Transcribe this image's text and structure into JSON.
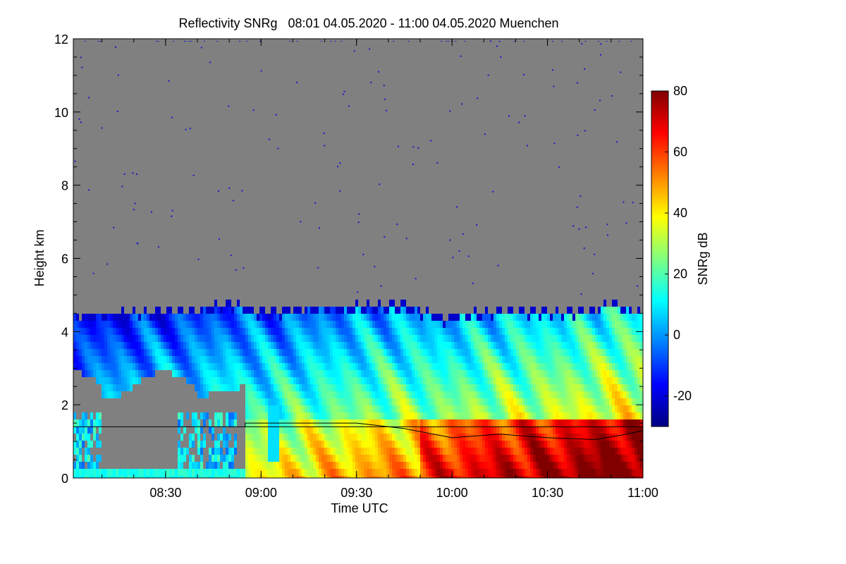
{
  "chart_data": {
    "type": "heatmap",
    "title": "Reflectivity SNRg   08:01 04.05.2020 - 11:00 04.05.2020 Muenchen",
    "xlabel": "Time UTC",
    "ylabel": "Height km",
    "colorbar_label": "SNRg dB",
    "x_range": [
      "08:01",
      "11:00"
    ],
    "y_range": [
      0,
      12
    ],
    "x_ticks": [
      "08:30",
      "09:00",
      "09:30",
      "10:00",
      "10:30",
      "11:00"
    ],
    "y_ticks": [
      0,
      2,
      4,
      6,
      8,
      10,
      12
    ],
    "colorbar_range": [
      -30,
      80
    ],
    "colorbar_ticks": [
      -20,
      0,
      20,
      40,
      60,
      80
    ],
    "no_data_color": "#808080",
    "colormap": [
      "#000080",
      "#0000ff",
      "#0080ff",
      "#00ffff",
      "#80ff80",
      "#ffff00",
      "#ff8000",
      "#ff0000",
      "#800000"
    ],
    "echo_top_km": [
      {
        "time": "08:01",
        "height": 4.45
      },
      {
        "time": "08:20",
        "height": 4.55
      },
      {
        "time": "08:40",
        "height": 4.6
      },
      {
        "time": "08:50",
        "height": 4.8
      },
      {
        "time": "09:00",
        "height": 4.55
      },
      {
        "time": "09:15",
        "height": 4.65
      },
      {
        "time": "09:30",
        "height": 4.7
      },
      {
        "time": "09:45",
        "height": 4.75
      },
      {
        "time": "09:58",
        "height": 4.35
      },
      {
        "time": "10:00",
        "height": 4.45
      },
      {
        "time": "10:15",
        "height": 4.6
      },
      {
        "time": "10:30",
        "height": 4.55
      },
      {
        "time": "10:45",
        "height": 4.6
      },
      {
        "time": "10:50",
        "height": 4.8
      },
      {
        "time": "11:00",
        "height": 4.5
      }
    ],
    "reference_line_km": 1.4,
    "boundary_layer_line_km": [
      {
        "time": "08:55",
        "height": 1.5
      },
      {
        "time": "09:30",
        "height": 1.5
      },
      {
        "time": "09:45",
        "height": 1.35
      },
      {
        "time": "10:00",
        "height": 1.1
      },
      {
        "time": "10:15",
        "height": 1.2
      },
      {
        "time": "10:30",
        "height": 1.1
      },
      {
        "time": "10:45",
        "height": 1.05
      },
      {
        "time": "10:55",
        "height": 1.2
      },
      {
        "time": "11:00",
        "height": 1.3
      }
    ]
  }
}
